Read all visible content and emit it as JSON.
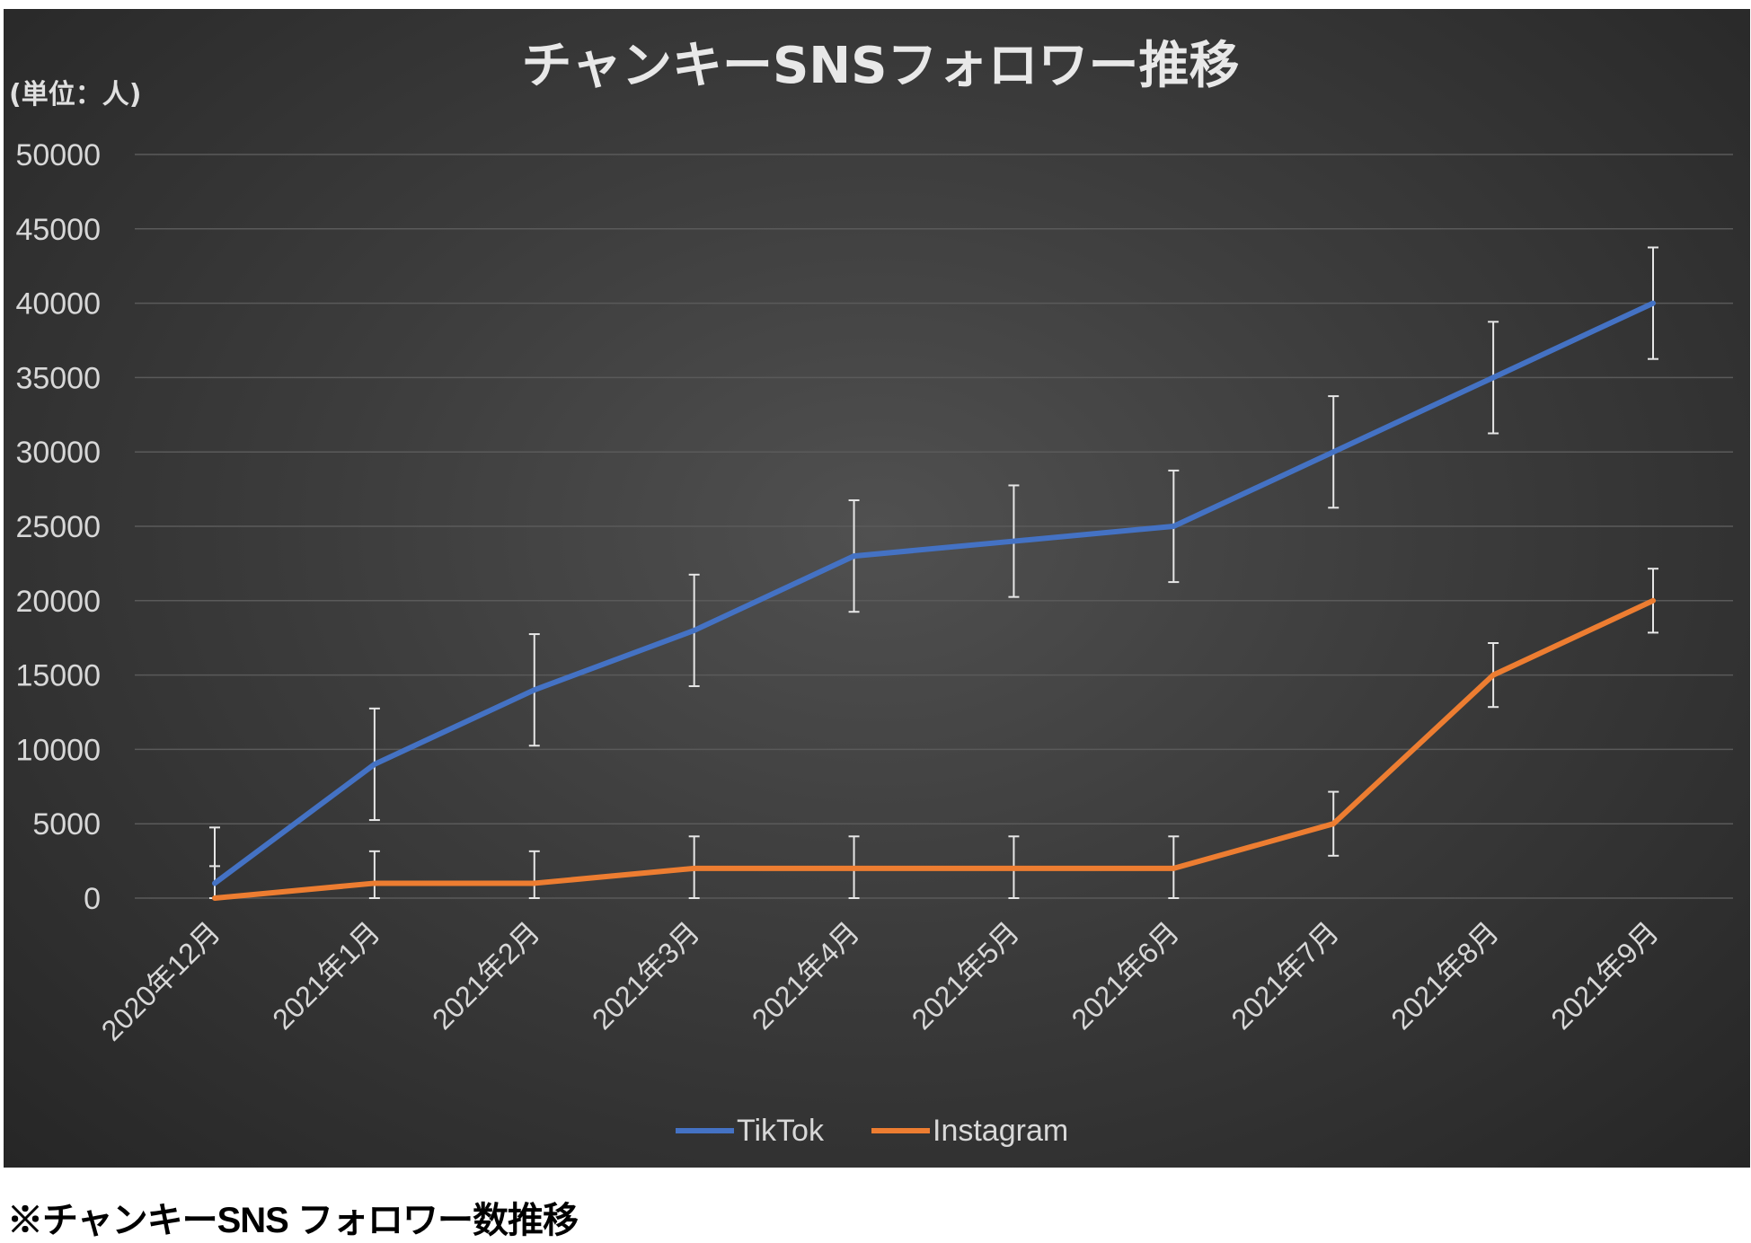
{
  "chart_data": {
    "type": "line",
    "title": "チャンキーSNSフォロワー推移",
    "ylabel": "(単位：人)",
    "xlabel": "",
    "ylim": [
      0,
      50000
    ],
    "yticks": [
      0,
      5000,
      10000,
      15000,
      20000,
      25000,
      30000,
      35000,
      40000,
      45000,
      50000
    ],
    "grid": true,
    "legend_position": "bottom",
    "categories": [
      "2020年12月",
      "2021年1月",
      "2021年2月",
      "2021年3月",
      "2021年4月",
      "2021年5月",
      "2021年6月",
      "2021年7月",
      "2021年8月",
      "2021年9月"
    ],
    "series": [
      {
        "name": "TikTok",
        "color": "#4472c4",
        "values": [
          1000,
          9000,
          14000,
          18000,
          23000,
          24000,
          25000,
          30000,
          35000,
          40000
        ],
        "error": 3750
      },
      {
        "name": "Instagram",
        "color": "#ed7d31",
        "values": [
          0,
          1000,
          1000,
          2000,
          2000,
          2000,
          2000,
          5000,
          15000,
          20000
        ],
        "error": 2150
      }
    ]
  },
  "caption": "※チャンキーSNS フォロワー数推移"
}
